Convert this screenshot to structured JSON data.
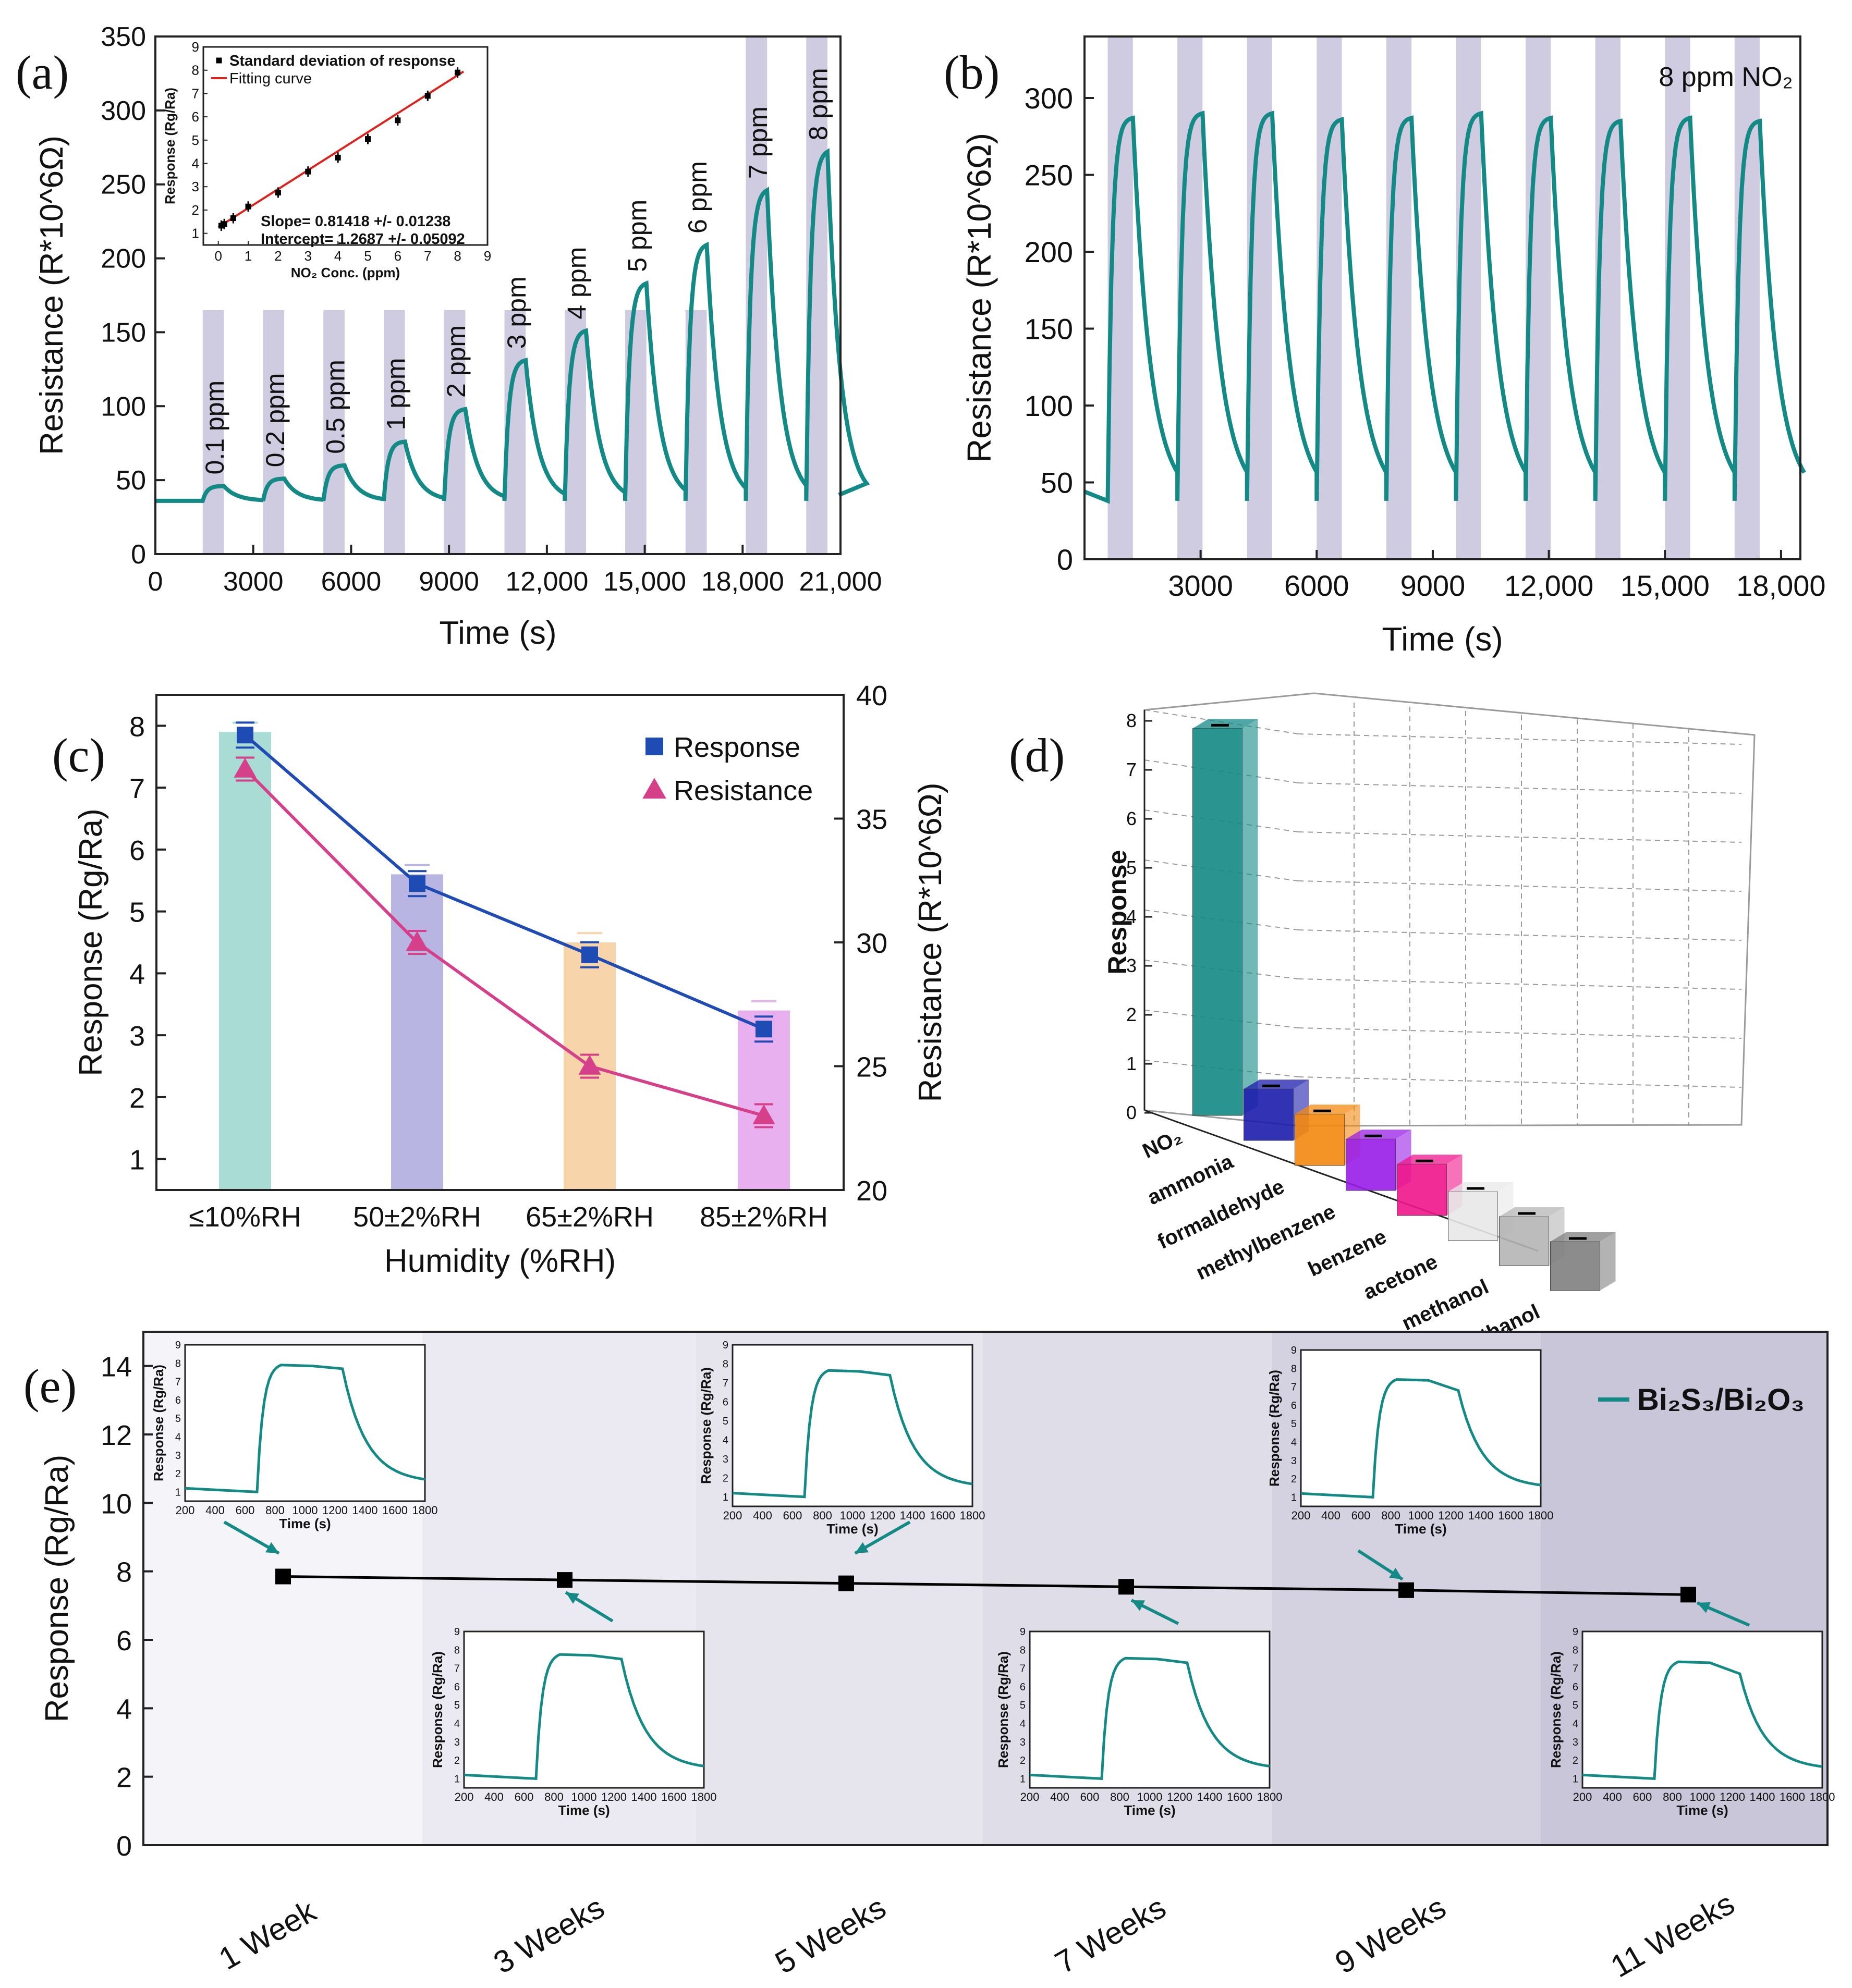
{
  "colors": {
    "teal": "#138a85",
    "band": "#cfcbe0",
    "blue": "#1f4bb5",
    "pink": "#d63f8a",
    "red": "#e0201a",
    "frame": "#222222",
    "grid3d": "#9a9a9a"
  },
  "chart_data": [
    {
      "id": "a",
      "panel_label": "(a)",
      "type": "line",
      "xlabel": "Time (s)",
      "ylabel": "Resistance (R*10^6Ω)",
      "xlim": [
        0,
        21000
      ],
      "ylim": [
        0,
        350
      ],
      "x_tick_labels": [
        "0",
        "3000",
        "6000",
        "9000",
        "12,000",
        "15,000",
        "18,000",
        "21,000"
      ],
      "y_tick_labels": [
        "0",
        "50",
        "100",
        "150",
        "200",
        "250",
        "300",
        "350"
      ],
      "baseline": 36,
      "pulses": [
        {
          "label": "0.1 ppm",
          "start": 1450,
          "end": 2100,
          "peak": 46
        },
        {
          "label": "0.2 ppm",
          "start": 3300,
          "end": 3950,
          "peak": 51
        },
        {
          "label": "0.5 ppm",
          "start": 5150,
          "end": 5800,
          "peak": 60
        },
        {
          "label": "1 ppm",
          "start": 7000,
          "end": 7650,
          "peak": 76
        },
        {
          "label": "2 ppm",
          "start": 8850,
          "end": 9500,
          "peak": 98
        },
        {
          "label": "3 ppm",
          "start": 10700,
          "end": 11350,
          "peak": 131
        },
        {
          "label": "4 ppm",
          "start": 12550,
          "end": 13200,
          "peak": 151
        },
        {
          "label": "5 ppm",
          "start": 14400,
          "end": 15050,
          "peak": 183
        },
        {
          "label": "6 ppm",
          "start": 16250,
          "end": 16900,
          "peak": 209
        },
        {
          "label": "7 ppm",
          "start": 18100,
          "end": 18750,
          "peak": 246
        },
        {
          "label": "8 ppm",
          "start": 19950,
          "end": 20600,
          "peak": 272
        }
      ],
      "inset": {
        "type": "scatter",
        "xlabel": "NO₂ Conc. (ppm)",
        "ylabel": "Response (Rg/Ra)",
        "xlim": [
          -0.5,
          9
        ],
        "ylim": [
          0.5,
          9
        ],
        "x_tick_labels": [
          "0",
          "1",
          "2",
          "3",
          "4",
          "5",
          "6",
          "7",
          "8",
          "9"
        ],
        "y_tick_labels": [
          "1",
          "2",
          "3",
          "4",
          "5",
          "6",
          "7",
          "8",
          "9"
        ],
        "x": [
          0.1,
          0.2,
          0.5,
          1,
          2,
          3,
          4,
          5,
          6,
          7,
          8
        ],
        "y": [
          1.33,
          1.4,
          1.65,
          2.15,
          2.75,
          3.65,
          4.25,
          5.05,
          5.85,
          6.9,
          7.9
        ],
        "legend_points": "Standard deviation of response",
        "legend_line": "Fitting curve",
        "slope_text": "Slope= 0.81418 +/- 0.01238",
        "intercept_text": "Intercept= 1.2687 +/- 0.05092",
        "fit": {
          "slope": 0.81418,
          "intercept": 1.2687
        }
      }
    },
    {
      "id": "b",
      "panel_label": "(b)",
      "type": "line",
      "annotation": "8 ppm NO₂",
      "xlabel": "Time (s)",
      "ylabel": "Resistance (R*10^6Ω)",
      "xlim": [
        0,
        18500
      ],
      "ylim": [
        0,
        340
      ],
      "x_tick_labels": [
        "3000",
        "6000",
        "9000",
        "12,000",
        "15,000",
        "18,000"
      ],
      "y_tick_labels": [
        "0",
        "50",
        "100",
        "150",
        "200",
        "250",
        "300"
      ],
      "baseline": 38,
      "cycles": 10,
      "pulse_starts": [
        600,
        2400,
        4200,
        6000,
        7800,
        9600,
        11400,
        13200,
        15000,
        16800
      ],
      "pulse_width": 650,
      "peaks": [
        287,
        290,
        290,
        286,
        287,
        290,
        287,
        285,
        287,
        285
      ]
    },
    {
      "id": "c",
      "panel_label": "(c)",
      "type": "line",
      "xlabel": "Humidity (%RH)",
      "ylabel": "Response (Rg/Ra)",
      "ylabel_right": "Resistance (R*10^6Ω)",
      "categories": [
        "≤10%RH",
        "50±2%RH",
        "65±2%RH",
        "85±2%RH"
      ],
      "ylim": [
        0.5,
        8.5
      ],
      "ylim_right": [
        20,
        40
      ],
      "y_tick_labels": [
        "1",
        "2",
        "3",
        "4",
        "5",
        "6",
        "7",
        "8"
      ],
      "y_tick_labels_right": [
        "20",
        "25",
        "30",
        "35",
        "40"
      ],
      "bar_colors": [
        "#a9dcd5",
        "#b8b5e2",
        "#f8d4aa",
        "#e8b0ef"
      ],
      "bar_values": [
        7.9,
        5.6,
        4.5,
        3.4
      ],
      "series": [
        {
          "name": "Response",
          "values": [
            7.85,
            5.45,
            4.3,
            3.1
          ],
          "axis": "left",
          "marker": "square",
          "color": "#1f4bb5"
        },
        {
          "name": "Resistance",
          "values": [
            37,
            30,
            25,
            23
          ],
          "axis": "right",
          "marker": "triangle",
          "color": "#d63f8a"
        }
      ]
    },
    {
      "id": "d",
      "panel_label": "(d)",
      "type": "bar",
      "ylabel": "Response",
      "zlim": [
        0,
        8
      ],
      "z_tick_labels": [
        "0",
        "1",
        "2",
        "3",
        "4",
        "5",
        "6",
        "7",
        "8"
      ],
      "categories": [
        "NO₂",
        "ammonia",
        "formaldehyde",
        "methylbenzene",
        "benzene",
        "acetone",
        "methanol",
        "ethanol"
      ],
      "values": [
        7.9,
        1.05,
        1.05,
        1.05,
        1.05,
        1.0,
        1.0,
        1.0
      ],
      "bar_colors": [
        "#138a85",
        "#1c1cad",
        "#f5890f",
        "#9a1ee8",
        "#f0168c",
        "#e8e8e8",
        "#b5b5b5",
        "#808080"
      ]
    },
    {
      "id": "e",
      "panel_label": "(e)",
      "type": "line",
      "ylabel": "Response (Rg/Ra)",
      "ylim": [
        0,
        15
      ],
      "y_tick_labels": [
        "0",
        "2",
        "4",
        "6",
        "8",
        "10",
        "12",
        "14"
      ],
      "categories": [
        "1 Week",
        "3 Weeks",
        "5 Weeks",
        "7 Weeks",
        "9 Weeks",
        "11 Weeks"
      ],
      "values": [
        7.85,
        7.75,
        7.65,
        7.55,
        7.45,
        7.32
      ],
      "legend": "Bi₂S₃/Bi₂O₃",
      "inset_xlabel": "Time (s)",
      "inset_ylabel": "Response (Rg/Ra)",
      "inset_x_tick_labels": [
        "200",
        "400",
        "600",
        "800",
        "1000",
        "1200",
        "1400",
        "1600",
        "1800"
      ],
      "inset_y_tick_labels": [
        "1",
        "2",
        "3",
        "4",
        "5",
        "6",
        "7",
        "8",
        "9"
      ],
      "inset_peaks": [
        7.9,
        7.75,
        7.65,
        7.55,
        7.4,
        7.35
      ],
      "inset_plateau_end": [
        7.7,
        7.5,
        7.4,
        7.3,
        6.8,
        6.7
      ]
    }
  ]
}
